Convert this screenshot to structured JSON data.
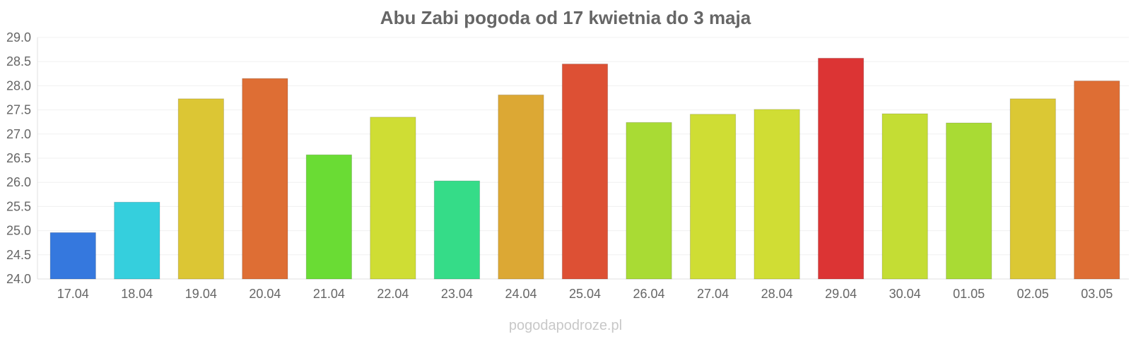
{
  "chart_data": {
    "type": "bar",
    "title": "Abu Zabi pogoda od 17 kwietnia do 3 maja",
    "xlabel": "",
    "ylabel": "",
    "categories": [
      "17.04",
      "18.04",
      "19.04",
      "20.04",
      "21.04",
      "22.04",
      "23.04",
      "24.04",
      "25.04",
      "26.04",
      "27.04",
      "28.04",
      "29.04",
      "30.04",
      "01.05",
      "02.05",
      "03.05"
    ],
    "values": [
      24.96,
      25.59,
      27.73,
      28.15,
      26.57,
      27.35,
      26.03,
      27.81,
      28.45,
      27.24,
      27.41,
      27.51,
      28.57,
      27.42,
      27.23,
      27.73,
      28.1
    ],
    "colors": [
      "#3578de",
      "#35cfdd",
      "#dcc634",
      "#de6e34",
      "#6adc34",
      "#cfdd34",
      "#35dc88",
      "#dca834",
      "#dd5034",
      "#a9db34",
      "#cfdd34",
      "#d0dd34",
      "#dc3434",
      "#c4dd34",
      "#a9db34",
      "#dbc834",
      "#de6e34"
    ],
    "ylim": [
      24.0,
      29.0
    ],
    "yticks": [
      "24.0",
      "24.5",
      "25.0",
      "25.5",
      "26.0",
      "26.5",
      "27.0",
      "27.5",
      "28.0",
      "28.5",
      "29.0"
    ],
    "grid": true,
    "legend": "none"
  },
  "watermark": "pogodapodroze.pl"
}
